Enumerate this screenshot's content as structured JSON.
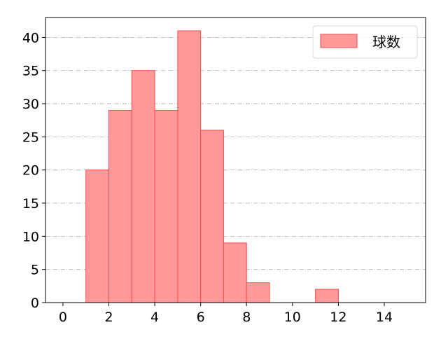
{
  "chart_data": {
    "type": "bar",
    "histogram": true,
    "bins": [
      [
        1,
        2
      ],
      [
        2,
        3
      ],
      [
        3,
        4
      ],
      [
        4,
        5
      ],
      [
        5,
        6
      ],
      [
        6,
        7
      ],
      [
        7,
        8
      ],
      [
        8,
        9
      ],
      [
        11,
        12
      ]
    ],
    "values": [
      20,
      29,
      35,
      29,
      41,
      26,
      9,
      3,
      2
    ],
    "series": [
      {
        "name": "球数",
        "values": [
          20,
          29,
          35,
          29,
          41,
          26,
          9,
          3,
          2
        ]
      }
    ],
    "xlim": [
      -0.76,
      15.8
    ],
    "ylim": [
      0,
      43
    ],
    "xticks": [
      0,
      2,
      4,
      6,
      8,
      10,
      12,
      14
    ],
    "yticks": [
      0,
      5,
      10,
      15,
      20,
      25,
      30,
      35,
      40
    ],
    "grid": "y, dash-dot",
    "legend": "top-right",
    "colors": {
      "bar_fill": "#ff9999",
      "bar_edge": "#ff4d4d",
      "grid": "#b0b0b0"
    }
  }
}
